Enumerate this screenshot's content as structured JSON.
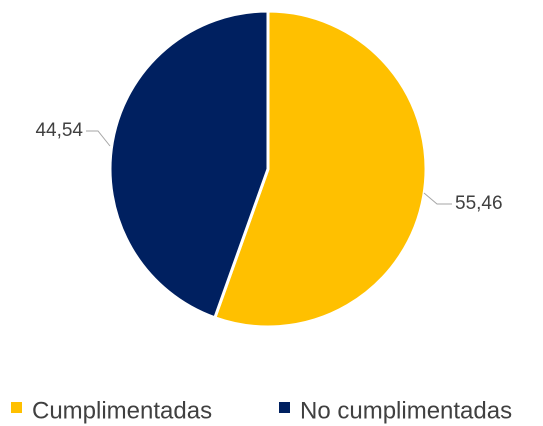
{
  "chart_data": {
    "type": "pie",
    "title": "",
    "slices": [
      {
        "name": "Cumplimentadas",
        "value": 55.46,
        "label": "55,46",
        "color": "#FFC000"
      },
      {
        "name": "No cumplimentadas",
        "value": 44.54,
        "label": "44,54",
        "color": "#002060"
      }
    ],
    "start_angle_deg": 0,
    "direction": "clockwise",
    "legend": {
      "position": "bottom",
      "entries": [
        "Cumplimentadas",
        "No cumplimentadas"
      ]
    }
  }
}
